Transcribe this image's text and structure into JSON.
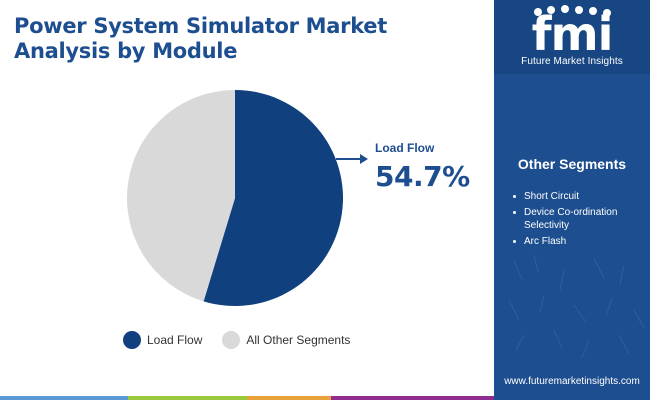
{
  "title": {
    "line1": "Power System Simulator Market",
    "line2": "Analysis by Module"
  },
  "brand": {
    "logo_text": "fmi",
    "name": "Future Market Insights",
    "url": "www.futuremarketinsights.com"
  },
  "sidebar": {
    "heading": "Other Segments",
    "items": [
      "Short Circuit",
      "Device Co-ordination Selectivity",
      "Arc Flash"
    ]
  },
  "callout": {
    "label": "Load Flow",
    "value": "54.7%"
  },
  "colors": {
    "primary": "#1d4e8f",
    "primary_dark": "#184683",
    "slice_dark": "#11407f",
    "slice_light": "#d9d9d9",
    "stripe": [
      "#5b9bd5",
      "#9ac83c",
      "#e9a23b",
      "#8e2d8f"
    ]
  },
  "chart_data": {
    "type": "pie",
    "title": "Power System Simulator Market Analysis by Module",
    "categories": [
      "Load Flow",
      "All Other Segments"
    ],
    "values": [
      54.7,
      45.3
    ],
    "legend": {
      "position": "bottom",
      "entries": [
        "Load Flow",
        "All Other Segments"
      ]
    },
    "annotations": [
      {
        "category": "Load Flow",
        "text": "54.7%"
      }
    ]
  }
}
